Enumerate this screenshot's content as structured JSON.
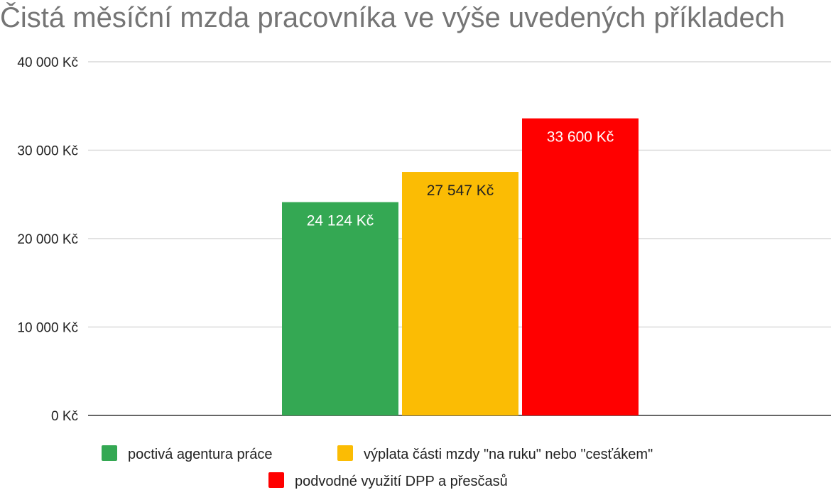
{
  "chart_data": {
    "type": "bar",
    "title": "Čistá měsíční mzda pracovníka ve výše uvedených příkladech",
    "xlabel": "",
    "ylabel": "",
    "ylim": [
      0,
      40000
    ],
    "grid": true,
    "legend_position": "bottom",
    "y_ticks": [
      {
        "value": 0,
        "label": "0 Kč"
      },
      {
        "value": 10000,
        "label": "10 000 Kč"
      },
      {
        "value": 20000,
        "label": "20 000 Kč"
      },
      {
        "value": 30000,
        "label": "30 000 Kč"
      },
      {
        "value": 40000,
        "label": "40 000 Kč"
      }
    ],
    "series": [
      {
        "name": "poctivá agentura práce",
        "value": 24124,
        "label": "24 124 Kč",
        "color": "#34a853",
        "label_color": "#ffffff"
      },
      {
        "name": "výplata části mzdy \"na ruku\" nebo \"cesťákem\"",
        "value": 27547,
        "label": "27 547 Kč",
        "color": "#fbbc04",
        "label_color": "#222222"
      },
      {
        "name": "podvodné využití DPP a přesčasů",
        "value": 33600,
        "label": "33 600 Kč",
        "color": "#ff0000",
        "label_color": "#ffffff"
      }
    ]
  }
}
